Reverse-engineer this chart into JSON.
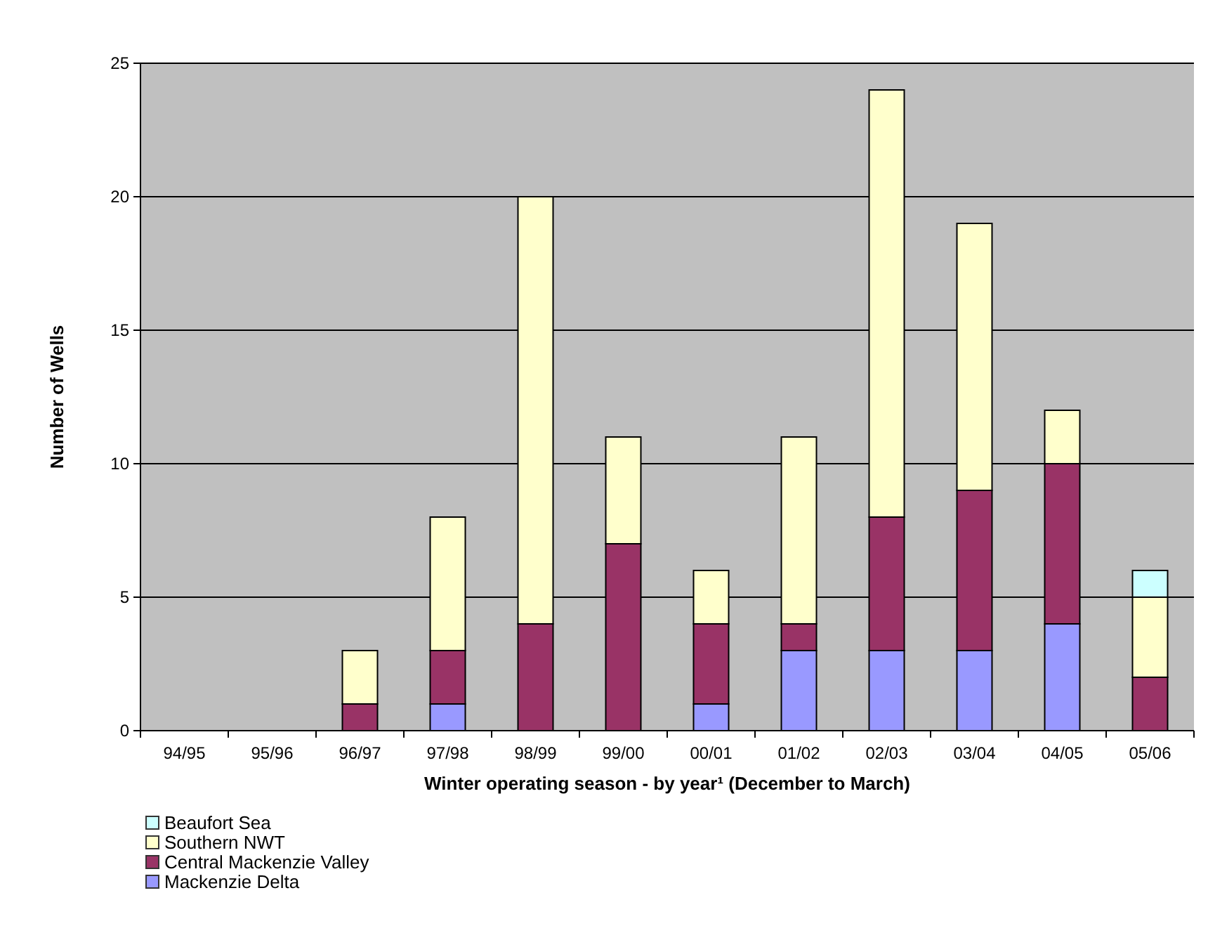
{
  "chart_data": {
    "type": "bar",
    "stacked": true,
    "xlabel": "Winter operating season - by year¹ (December to March)",
    "ylabel": "Number of Wells",
    "categories": [
      "94/95",
      "95/96",
      "96/97",
      "97/98",
      "98/99",
      "99/00",
      "00/01",
      "01/02",
      "02/03",
      "03/04",
      "04/05",
      "05/06"
    ],
    "series": [
      {
        "name": "Mackenzie Delta",
        "color": "#9999ff",
        "values": [
          0,
          0,
          0,
          1,
          0,
          0,
          1,
          3,
          3,
          3,
          4,
          0
        ]
      },
      {
        "name": "Central Mackenzie Valley",
        "color": "#993366",
        "values": [
          0,
          0,
          1,
          2,
          4,
          7,
          3,
          1,
          5,
          6,
          6,
          2
        ]
      },
      {
        "name": "Southern NWT",
        "color": "#ffffcc",
        "values": [
          0,
          0,
          2,
          5,
          16,
          4,
          2,
          7,
          16,
          10,
          2,
          3
        ]
      },
      {
        "name": "Beaufort Sea",
        "color": "#ccffff",
        "values": [
          0,
          0,
          0,
          0,
          0,
          0,
          0,
          0,
          0,
          0,
          0,
          1
        ]
      }
    ],
    "ylim": [
      0,
      25
    ],
    "yticks": [
      0,
      5,
      10,
      15,
      20,
      25
    ],
    "grid": "y",
    "legend": "bottom left"
  }
}
